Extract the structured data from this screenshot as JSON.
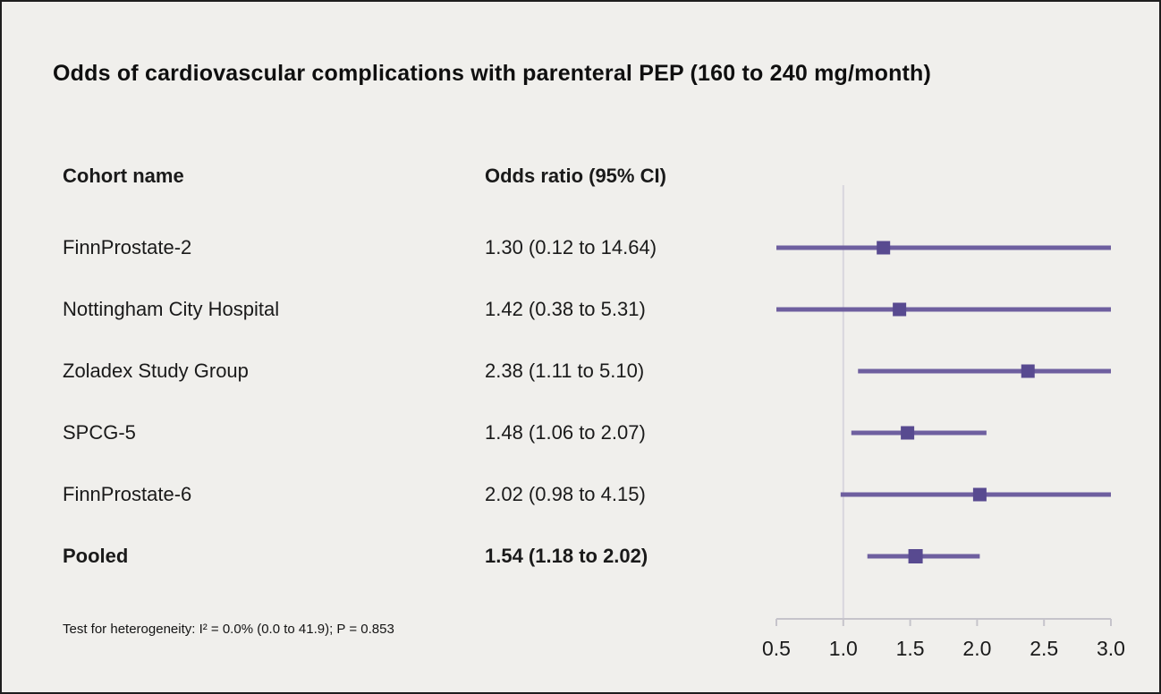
{
  "title": "Odds of cardiovascular complications with parenteral PEP (160 to 240 mg/month)",
  "columns": {
    "cohort": "Cohort name",
    "odds": "Odds ratio (95% CI)"
  },
  "footer": "Test for heterogeneity: I² = 0.0% (0.0 to 41.9); P = 0.853",
  "chart_data": {
    "type": "forest",
    "title": "Odds of cardiovascular complications with parenteral PEP (160 to 240 mg/month)",
    "xlabel": "Odds ratio",
    "axis": {
      "min": 0.5,
      "max": 3.0,
      "ticks": [
        0.5,
        1.0,
        1.5,
        2.0,
        2.5,
        3.0
      ],
      "reference_line": 1.0,
      "scale": "linear",
      "note": "confidence intervals clipped to axis range"
    },
    "rows": [
      {
        "cohort": "FinnProstate-2",
        "label": "1.30 (0.12 to 14.64)",
        "estimate": 1.3,
        "lower": 0.12,
        "upper": 14.64,
        "pooled": false
      },
      {
        "cohort": "Nottingham City Hospital",
        "label": "1.42 (0.38 to 5.31)",
        "estimate": 1.42,
        "lower": 0.38,
        "upper": 5.31,
        "pooled": false
      },
      {
        "cohort": "Zoladex Study Group",
        "label": "2.38 (1.11 to 5.10)",
        "estimate": 2.38,
        "lower": 1.11,
        "upper": 5.1,
        "pooled": false
      },
      {
        "cohort": "SPCG-5",
        "label": "1.48 (1.06 to 2.07)",
        "estimate": 1.48,
        "lower": 1.06,
        "upper": 2.07,
        "pooled": false
      },
      {
        "cohort": "FinnProstate-6",
        "label": "2.02 (0.98 to 4.15)",
        "estimate": 2.02,
        "lower": 0.98,
        "upper": 4.15,
        "pooled": false
      },
      {
        "cohort": "Pooled",
        "label": "1.54 (1.18 to 2.02)",
        "estimate": 1.54,
        "lower": 1.18,
        "upper": 2.02,
        "pooled": true
      }
    ],
    "colors": {
      "line": "#6e5f9f",
      "marker": "#584a90",
      "reference": "#d8d6de",
      "axis": "#c6c4cb",
      "background": "#f0efec",
      "text": "#1a1a1a"
    },
    "legend_position": "none",
    "grid": false
  }
}
